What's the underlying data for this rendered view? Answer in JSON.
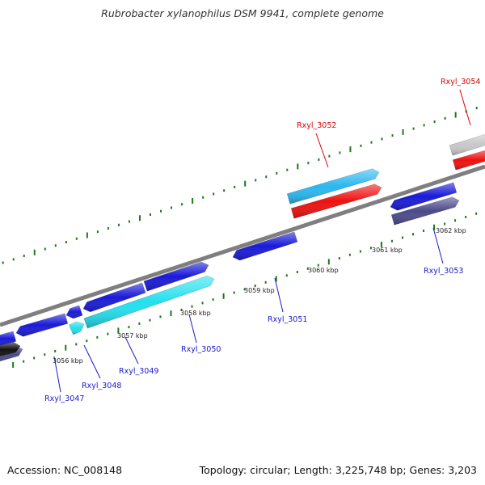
{
  "title": "Rubrobacter xylanophilus DSM 9941, complete genome",
  "footer": {
    "accession": "Accession: NC_008148",
    "summary": "Topology: circular; Length: 3,225,748 bp; Genes: 3,203"
  },
  "colors": {
    "backbone": "#7f7f7f",
    "tick": "#1a7a1a",
    "gene_blue": "#1a1ad8",
    "gene_cyan": "#22e0ee",
    "gene_skyblue": "#2ab8f0",
    "gene_red": "#ee1111",
    "gene_navy": "#4b4a8a",
    "gene_gray": "#c8c8c8",
    "label_blue": "#1a1acc",
    "label_red": "#dd0000"
  },
  "kbp_labels": [
    "3056 kbp",
    "3057 kbp",
    "3058 kbp",
    "3059 kbp",
    "3060 kbp",
    "3061 kbp",
    "3062 kbp"
  ],
  "gene_labels": [
    {
      "text": "Rxyl_3047",
      "color": "blue"
    },
    {
      "text": "Rxyl_3048",
      "color": "blue"
    },
    {
      "text": "Rxyl_3049",
      "color": "blue"
    },
    {
      "text": "Rxyl_3050",
      "color": "blue"
    },
    {
      "text": "Rxyl_3051",
      "color": "blue"
    },
    {
      "text": "Rxyl_3052",
      "color": "red"
    },
    {
      "text": "Rxyl_3053",
      "color": "blue"
    },
    {
      "text": "Rxyl_3054",
      "color": "red"
    }
  ]
}
